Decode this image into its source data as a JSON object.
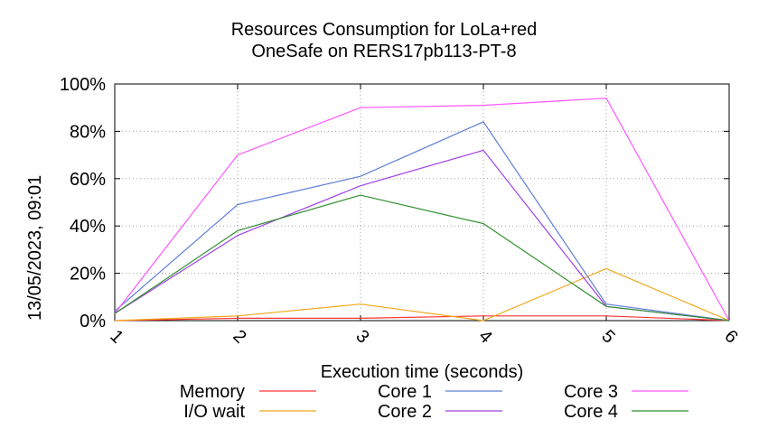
{
  "chart_data": {
    "type": "line",
    "title": "Resources Consumption for LoLa+red",
    "subtitle": "OneSafe on RERS17pb113-PT-8",
    "xlabel": "Execution time (seconds)",
    "ylabel": "",
    "x": [
      1,
      2,
      3,
      4,
      5,
      6
    ],
    "xticks": [
      "1",
      "2",
      "3",
      "4",
      "5",
      "6"
    ],
    "yticks": [
      "0%",
      "20%",
      "40%",
      "60%",
      "80%",
      "100%"
    ],
    "xlim": [
      1,
      6
    ],
    "ylim": [
      0,
      100
    ],
    "grid": true,
    "legend_position": "bottom",
    "series": [
      {
        "name": "Memory",
        "color": "#ff3333",
        "values": [
          0,
          1,
          1,
          2,
          2,
          0
        ]
      },
      {
        "name": "I/O wait",
        "color": "#f2a81d",
        "values": [
          0,
          2,
          7,
          0,
          22,
          0
        ]
      },
      {
        "name": "Core 1",
        "color": "#5f7fd6",
        "values": [
          4,
          49,
          61,
          84,
          7,
          0
        ]
      },
      {
        "name": "Core 2",
        "color": "#a040e8",
        "values": [
          3,
          36,
          57,
          72,
          6,
          0
        ]
      },
      {
        "name": "Core 3",
        "color": "#ff55ff",
        "values": [
          3,
          70,
          90,
          91,
          94,
          0
        ]
      },
      {
        "name": "Core 4",
        "color": "#2f8f2f",
        "values": [
          3,
          38,
          53,
          41,
          6,
          0
        ]
      }
    ]
  },
  "timestamp": "13/05/2023, 09:01"
}
